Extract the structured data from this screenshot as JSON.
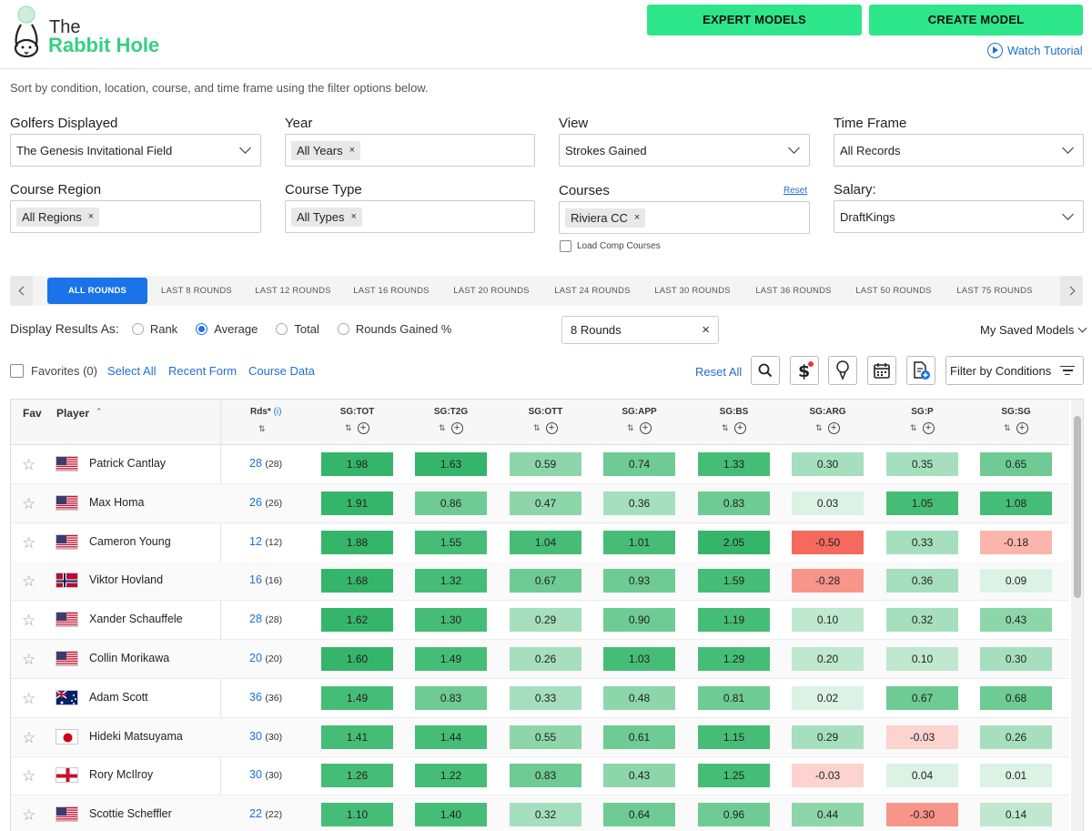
{
  "header": {
    "logo_line1": "The",
    "logo_line2": "Rabbit Hole",
    "expert_models": "EXPERT MODELS",
    "create_model": "CREATE MODEL",
    "watch_tutorial": "Watch Tutorial"
  },
  "intro": "Sort by condition, location, course, and time frame using the filter options below.",
  "filters": {
    "golfers_label": "Golfers Displayed",
    "golfers_value": "The Genesis Invitational Field",
    "year_label": "Year",
    "year_chip": "All Years",
    "view_label": "View",
    "view_value": "Strokes Gained",
    "timeframe_label": "Time Frame",
    "timeframe_value": "All Records",
    "region_label": "Course Region",
    "region_chip": "All Regions",
    "type_label": "Course Type",
    "type_chip": "All Types",
    "courses_label": "Courses",
    "courses_reset": "Reset",
    "courses_chip": "Riviera CC",
    "load_comp": "Load Comp Courses",
    "salary_label": "Salary:",
    "salary_value": "DraftKings",
    "chip_x": "×"
  },
  "round_tabs": [
    "ALL ROUNDS",
    "LAST 8 ROUNDS",
    "LAST 12 ROUNDS",
    "LAST 16 ROUNDS",
    "LAST 20 ROUNDS",
    "LAST 24 ROUNDS",
    "LAST 30 ROUNDS",
    "LAST 36 ROUNDS",
    "LAST 50 ROUNDS",
    "LAST 75 ROUNDS"
  ],
  "display": {
    "label": "Display Results As:",
    "options": [
      "Rank",
      "Average",
      "Total",
      "Rounds Gained %"
    ],
    "selected": "Average",
    "rounds_value": "8 Rounds",
    "rounds_clear": "×",
    "saved_models": "My Saved Models"
  },
  "toolbar": {
    "favorites": "Favorites (0)",
    "select_all": "Select All",
    "recent_form": "Recent Form",
    "course_data": "Course Data",
    "reset_all": "Reset All",
    "filter_conditions": "Filter by Conditions"
  },
  "icons": [
    "search-icon",
    "dollar-alert-icon",
    "golf-tee-icon",
    "calendar-icon",
    "document-add-icon",
    "filter-lines-icon"
  ],
  "table": {
    "headers": {
      "fav": "Fav",
      "player": "Player",
      "rds": "Rds*",
      "rds_info": "(i)",
      "stats": [
        "SG:TOT",
        "SG:T2G",
        "SG:OTT",
        "SG:APP",
        "SG:BS",
        "SG:ARG",
        "SG:P",
        "SG:SG"
      ]
    },
    "rows": [
      {
        "name": "Patrick Cantlay",
        "flag": "usa",
        "rds": "28",
        "rds_paren": "(28)",
        "stats": [
          "1.98",
          "1.63",
          "0.59",
          "0.74",
          "1.33",
          "0.30",
          "0.35",
          "0.65"
        ]
      },
      {
        "name": "Max Homa",
        "flag": "usa",
        "rds": "26",
        "rds_paren": "(26)",
        "stats": [
          "1.91",
          "0.86",
          "0.47",
          "0.36",
          "0.83",
          "0.03",
          "1.05",
          "1.08"
        ]
      },
      {
        "name": "Cameron Young",
        "flag": "usa",
        "rds": "12",
        "rds_paren": "(12)",
        "stats": [
          "1.88",
          "1.55",
          "1.04",
          "1.01",
          "2.05",
          "-0.50",
          "0.33",
          "-0.18"
        ]
      },
      {
        "name": "Viktor Hovland",
        "flag": "norway",
        "rds": "16",
        "rds_paren": "(16)",
        "stats": [
          "1.68",
          "1.32",
          "0.67",
          "0.93",
          "1.59",
          "-0.28",
          "0.36",
          "0.09"
        ]
      },
      {
        "name": "Xander Schauffele",
        "flag": "usa",
        "rds": "28",
        "rds_paren": "(28)",
        "stats": [
          "1.62",
          "1.30",
          "0.29",
          "0.90",
          "1.19",
          "0.10",
          "0.32",
          "0.43"
        ]
      },
      {
        "name": "Collin Morikawa",
        "flag": "usa",
        "rds": "20",
        "rds_paren": "(20)",
        "stats": [
          "1.60",
          "1.49",
          "0.26",
          "1.03",
          "1.29",
          "0.20",
          "0.10",
          "0.30"
        ]
      },
      {
        "name": "Adam Scott",
        "flag": "australia",
        "rds": "36",
        "rds_paren": "(36)",
        "stats": [
          "1.49",
          "0.83",
          "0.33",
          "0.48",
          "0.81",
          "0.02",
          "0.67",
          "0.68"
        ]
      },
      {
        "name": "Hideki Matsuyama",
        "flag": "japan",
        "rds": "30",
        "rds_paren": "(30)",
        "stats": [
          "1.41",
          "1.44",
          "0.55",
          "0.61",
          "1.15",
          "0.29",
          "-0.03",
          "0.26"
        ]
      },
      {
        "name": "Rory McIlroy",
        "flag": "northern-ireland",
        "rds": "30",
        "rds_paren": "(30)",
        "stats": [
          "1.26",
          "1.22",
          "0.83",
          "0.43",
          "1.25",
          "-0.03",
          "0.04",
          "0.01"
        ]
      },
      {
        "name": "Scottie Scheffler",
        "flag": "usa",
        "rds": "22",
        "rds_paren": "(22)",
        "stats": [
          "1.10",
          "1.40",
          "0.32",
          "0.64",
          "0.96",
          "0.44",
          "-0.30",
          "0.14"
        ]
      }
    ]
  },
  "colors": {
    "accent_green": "#2ee68a",
    "brand_green": "#35d07f",
    "link_blue": "#1f6fd0",
    "tab_active": "#1a73e8",
    "cell_positive_strong": "#35b56a",
    "cell_negative_strong": "#f56a5c"
  }
}
